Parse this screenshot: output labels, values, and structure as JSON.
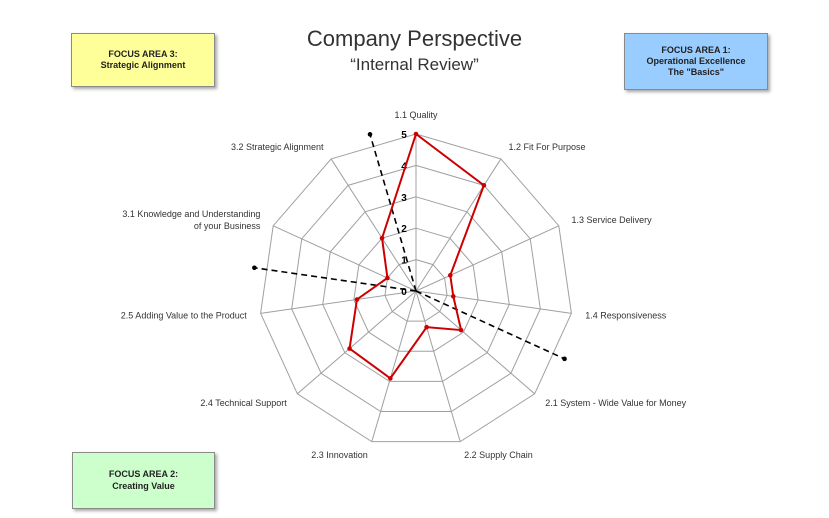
{
  "header": {
    "title": "Company Perspective",
    "subtitle": "“Internal Review”"
  },
  "focus_areas": {
    "fa3": {
      "line1": "FOCUS AREA 3:",
      "line2": "Strategic Alignment",
      "line3": "",
      "color": "#ffff99"
    },
    "fa1": {
      "line1": "FOCUS AREA 1:",
      "line2": "Operational Excellence",
      "line3": "The \"Basics\"",
      "color": "#99ccff"
    },
    "fa2": {
      "line1": "FOCUS AREA 2:",
      "line2": "Creating Value",
      "line3": "",
      "color": "#ccffcc"
    }
  },
  "chart_data": {
    "type": "radar",
    "title": "Company Perspective",
    "subtitle": "“Internal Review”",
    "categories": [
      [
        "1.1 Quality"
      ],
      [
        "1.2 Fit For Purpose"
      ],
      [
        "1.3 Service Delivery"
      ],
      [
        "1.4 Responsiveness"
      ],
      [
        "2.1 System - Wide Value for Money"
      ],
      [
        "2.2 Supply Chain"
      ],
      [
        "2.3 Innovation"
      ],
      [
        "2.4 Technical Support"
      ],
      [
        "2.5 Adding Value to the Product"
      ],
      [
        "3.1 Knowledge and Understanding",
        "of your Business"
      ],
      [
        "3.2 Strategic Alignment"
      ]
    ],
    "values": [
      5,
      4,
      1.2,
      1.2,
      1.9,
      1.2,
      2.9,
      2.8,
      1.9,
      1.0,
      2.0
    ],
    "ylim": [
      0,
      5
    ],
    "ticks": [
      0,
      1,
      2,
      3,
      4,
      5
    ],
    "grid": true,
    "series_color": "#cc0000",
    "grid_color": "#a0a0a0",
    "divider_color": "#000000",
    "dividers_between": [
      [
        3,
        4
      ],
      [
        8,
        9
      ],
      [
        10,
        0
      ]
    ]
  }
}
